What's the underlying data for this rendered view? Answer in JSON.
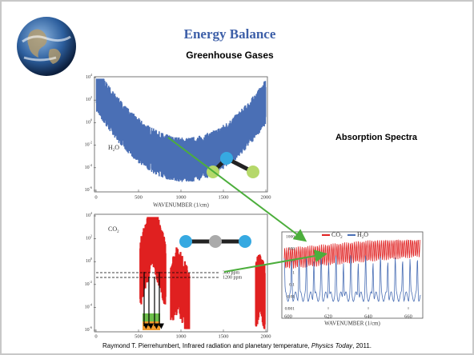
{
  "header": {
    "title": "Energy Balance",
    "subtitle": "Greenhouse Gases"
  },
  "side_label": "Absorption Spectra",
  "h2o_panel": {
    "gas": {
      "base": "H",
      "sub": "2",
      "rest": "O"
    },
    "yticks": [
      {
        "base": "10",
        "exp": "4"
      },
      {
        "base": "10",
        "exp": "2"
      },
      {
        "base": "10",
        "exp": "0"
      },
      {
        "base": "10",
        "exp": "-2"
      },
      {
        "base": "10",
        "exp": "-4"
      },
      {
        "base": "10",
        "exp": "-6"
      }
    ],
    "xticks": [
      "0",
      "500",
      "1000",
      "1500",
      "2000"
    ],
    "xlabel": "WAVENUMBER (1/cm)"
  },
  "co2_panel": {
    "gas": {
      "base": "CO",
      "sub": "2"
    },
    "yticks": [
      {
        "base": "10",
        "exp": "4"
      },
      {
        "base": "10",
        "exp": "2"
      },
      {
        "base": "10",
        "exp": "0"
      },
      {
        "base": "10",
        "exp": "-2"
      },
      {
        "base": "10",
        "exp": "-4"
      },
      {
        "base": "10",
        "exp": "-6"
      }
    ],
    "xticks": [
      "0",
      "500",
      "1000",
      "1500",
      "2000"
    ],
    "levels": [
      "300 ppm",
      "1200 ppm"
    ]
  },
  "inset": {
    "legend": [
      {
        "base": "CO",
        "sub": "2"
      },
      {
        "base": "H",
        "sub": "2",
        "rest": "O"
      }
    ],
    "yticks": [
      "1000",
      "100",
      "10",
      "1",
      "0.1",
      "0.01",
      "0.001"
    ],
    "xticks": [
      "600",
      "620",
      "640",
      "660"
    ],
    "xlabel": "WAVENUMBER (1/cm)"
  },
  "citation": {
    "before": "Raymond T. Pierrehumbert, Infrared radiation and planetary temperature, ",
    "journal": "Physics Today",
    "after": ", 2011."
  }
}
